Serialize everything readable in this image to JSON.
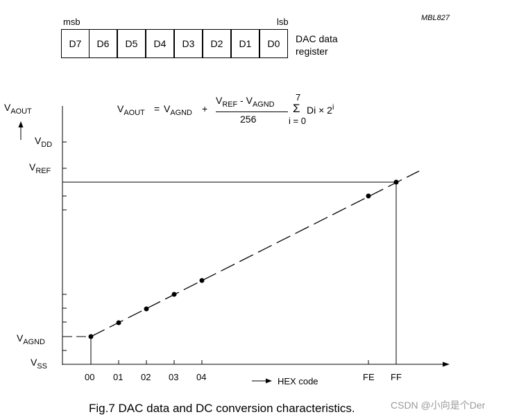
{
  "figure_id": "MBL827",
  "register": {
    "msb": "msb",
    "lsb": "lsb",
    "bits": [
      "D7",
      "D6",
      "D5",
      "D4",
      "D3",
      "D2",
      "D1",
      "D0"
    ],
    "caption_line1": "DAC data",
    "caption_line2": "register"
  },
  "formula": {
    "lhs_v": "V",
    "lhs_sub": "AOUT",
    "eq": "=",
    "term1_v": "V",
    "term1_sub": "AGND",
    "plus": "+",
    "num_v1": "V",
    "num_sub1": "REF",
    "num_minus": " - ",
    "num_v2": "V",
    "num_sub2": "AGND",
    "denominator": "256",
    "sum_upper": "7",
    "sum_sign": "Σ",
    "sum_lower": "i = 0",
    "term_di": "Di × 2",
    "term_exp": "i"
  },
  "y_axis": {
    "label_v": "V",
    "label_sub": "AOUT",
    "levels": [
      {
        "v": "V",
        "sub": "DD"
      },
      {
        "v": "V",
        "sub": "REF"
      },
      {
        "v": "V",
        "sub": "AGND"
      },
      {
        "v": "V",
        "sub": "SS"
      }
    ]
  },
  "x_axis": {
    "ticks": [
      "00",
      "01",
      "02",
      "03",
      "04",
      "FE",
      "FF"
    ],
    "label": "HEX code"
  },
  "caption": "Fig.7  DAC data and DC conversion characteristics.",
  "watermark": "CSDN @小向是个Der"
}
